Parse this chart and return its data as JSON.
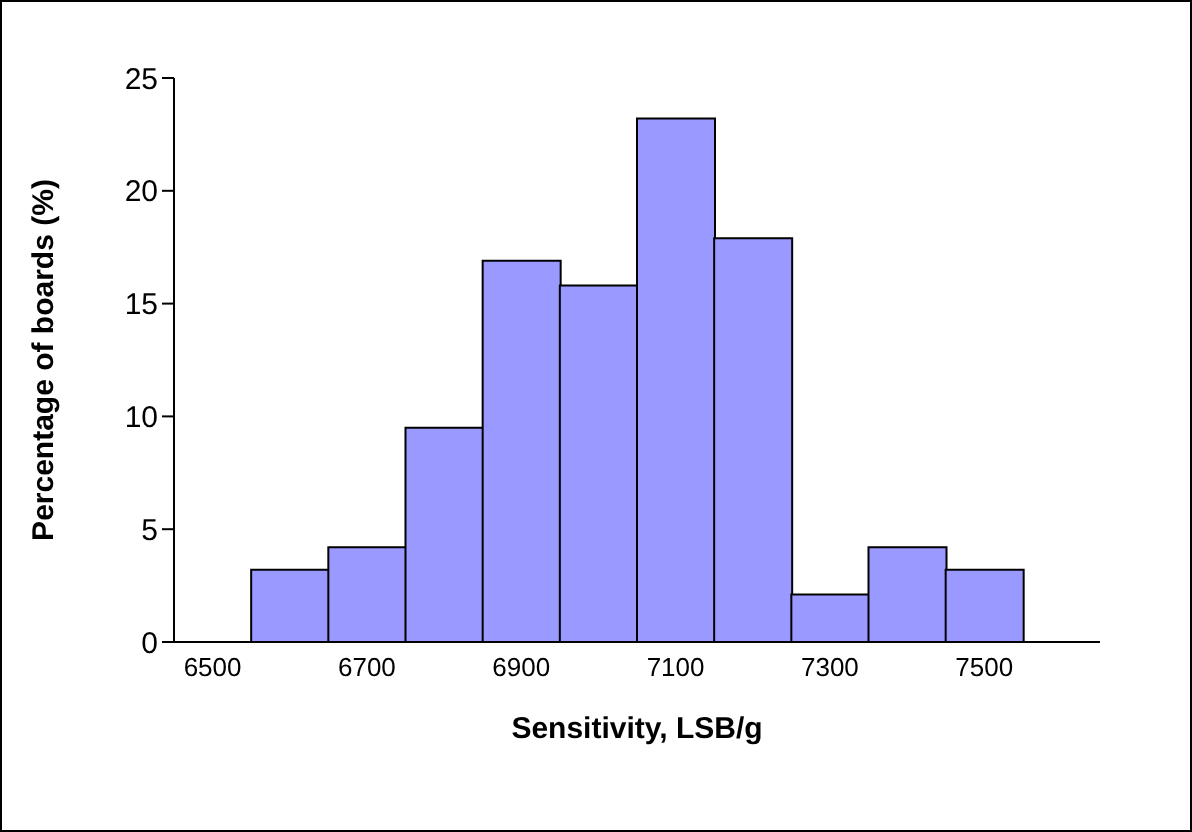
{
  "chart_data": {
    "type": "bar",
    "xlabel": "Sensitivity, LSB/g",
    "ylabel": "Percentage of boards (%)",
    "categories": [
      "6500",
      null,
      "6700",
      null,
      "6900",
      null,
      "7100",
      null,
      "7300",
      null,
      "7500",
      null
    ],
    "values": [
      0,
      3.2,
      4.2,
      9.5,
      16.9,
      15.8,
      23.2,
      17.9,
      2.1,
      4.2,
      3.2,
      0
    ],
    "color": "#9999ff",
    "ylim": [
      0,
      25
    ],
    "yticks": [
      0,
      5,
      10,
      15,
      20,
      25
    ],
    "grid": false,
    "legend": false
  }
}
